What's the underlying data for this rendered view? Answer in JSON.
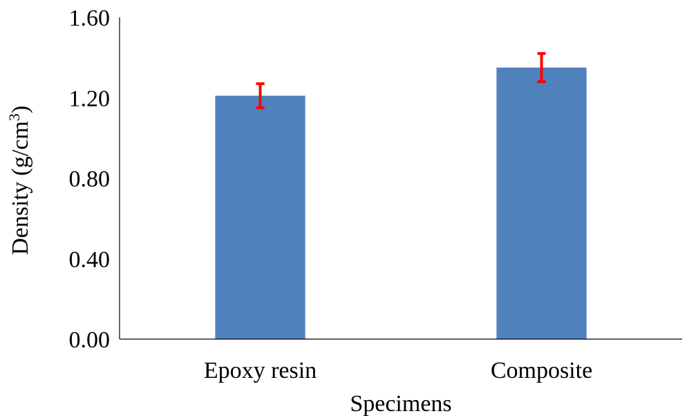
{
  "chart_data": {
    "type": "bar",
    "categories": [
      "Epoxy resin",
      "Composite"
    ],
    "values": [
      1.21,
      1.35
    ],
    "error": [
      0.06,
      0.07
    ],
    "xlabel": "Specimens",
    "ylabel": {
      "main": "Density (g/cm",
      "sup": "3",
      "close": ")"
    },
    "ylim": [
      0,
      1.6
    ],
    "yticks": [
      "0.00",
      "0.40",
      "0.80",
      "1.20",
      "1.60"
    ],
    "grid": false,
    "legend": "none",
    "colors": {
      "bar": "#4f81bd",
      "error_bar": "#ff0000"
    }
  }
}
